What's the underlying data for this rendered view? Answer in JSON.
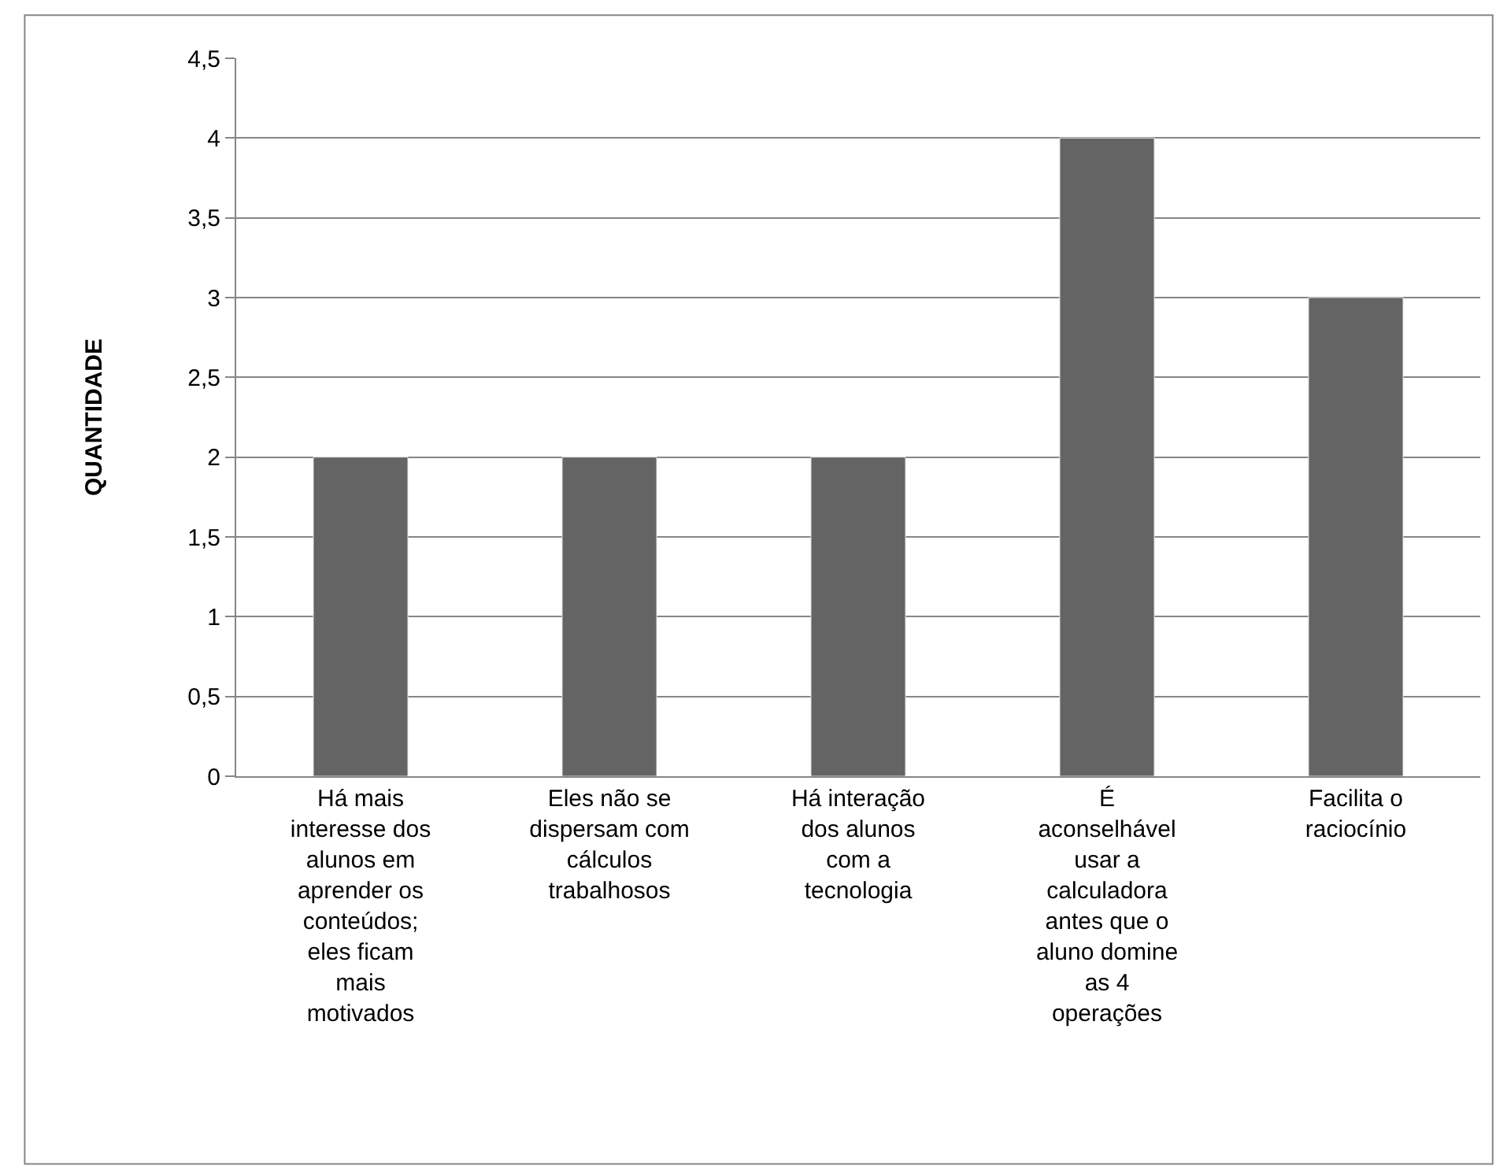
{
  "chart_data": {
    "type": "bar",
    "ylabel": "QUANTIDADE",
    "categories": [
      "Há mais interesse dos alunos em aprender os conteúdos; eles ficam mais motivados",
      "Eles não se dispersam com cálculos trabalhosos",
      "Há interação dos alunos com a tecnologia",
      "É aconselhável usar a calculadora antes que o aluno domine as 4 operações",
      "Facilita o raciocínio"
    ],
    "values": [
      2,
      2,
      2,
      4,
      3
    ],
    "color": "#646464",
    "ylim": [
      0,
      4.5
    ],
    "yticks": [
      0,
      {
        "value": 0.5,
        "label": "0,5"
      },
      1,
      {
        "value": 1.5,
        "label": "1,5"
      },
      2,
      {
        "value": 2.5,
        "label": "2,5"
      },
      3,
      {
        "value": 3.5,
        "label": "3,5"
      },
      4,
      {
        "value": 4.5,
        "label": "4,5"
      }
    ],
    "grid": "y"
  }
}
